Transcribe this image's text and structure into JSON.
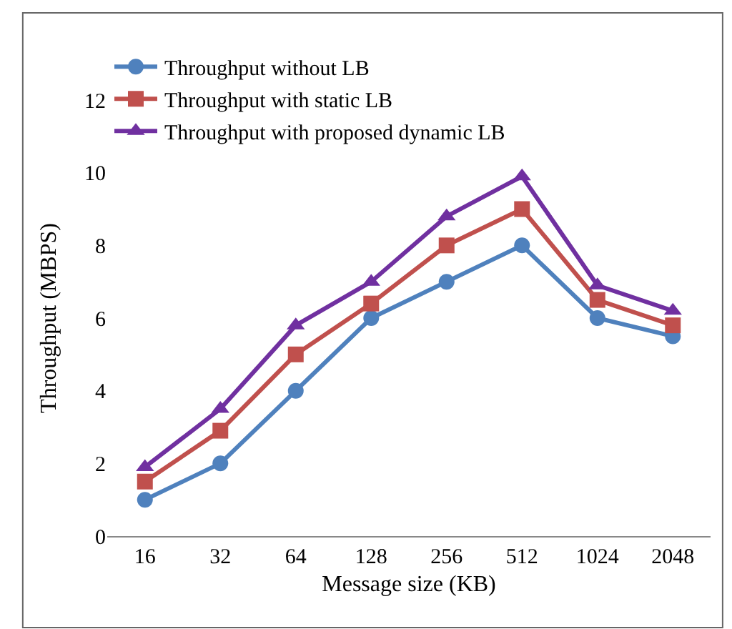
{
  "chart_data": {
    "type": "line",
    "xlabel": "Message size (KB)",
    "ylabel": "Throughput (MBPS)",
    "categories": [
      "16",
      "32",
      "64",
      "128",
      "256",
      "512",
      "1024",
      "2048"
    ],
    "series": [
      {
        "name": "Throughput without LB",
        "color": "#4f81bd",
        "marker": "circle",
        "values": [
          1,
          2,
          4,
          6,
          7,
          8,
          6,
          5.5
        ]
      },
      {
        "name": "Throughput with static LB",
        "color": "#c0504d",
        "marker": "square",
        "values": [
          1.5,
          2.9,
          5,
          6.4,
          8,
          9,
          6.5,
          5.8
        ]
      },
      {
        "name": "Throughput with proposed dynamic LB",
        "color": "#7030a0",
        "marker": "triangle",
        "values": [
          1.9,
          3.5,
          5.8,
          7,
          8.8,
          9.9,
          6.9,
          6.2
        ]
      }
    ],
    "ylim": [
      0,
      12
    ],
    "yticks": [
      0,
      2,
      4,
      6,
      8,
      10,
      12
    ],
    "legend": "top left",
    "line_style": "solid"
  }
}
